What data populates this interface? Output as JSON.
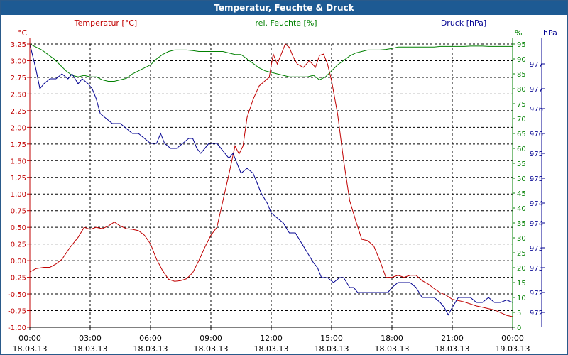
{
  "window": {
    "title": "Temperatur, Feuchte & Druck"
  },
  "colors": {
    "temperature": "#c00000",
    "humidity": "#008000",
    "pressure": "#000090",
    "grid": "#000000",
    "title_bar": "#1d5a93"
  },
  "chart_data": {
    "type": "line",
    "title": "Temperatur, Feuchte & Druck",
    "grid": true,
    "x_ticks": [
      {
        "h": 0,
        "time": "00:00",
        "date": "18.03.13"
      },
      {
        "h": 3,
        "time": "03:00",
        "date": "18.03.13"
      },
      {
        "h": 6,
        "time": "06:00",
        "date": "18.03.13"
      },
      {
        "h": 9,
        "time": "09:00",
        "date": "18.03.13"
      },
      {
        "h": 12,
        "time": "12:00",
        "date": "18.03.13"
      },
      {
        "h": 15,
        "time": "15:00",
        "date": "18.03.13"
      },
      {
        "h": 18,
        "time": "18:00",
        "date": "18.03.13"
      },
      {
        "h": 21,
        "time": "21:00",
        "date": "18.03.13"
      },
      {
        "h": 24,
        "time": "00:00",
        "date": "19.03.13"
      }
    ],
    "axes": {
      "temperature": {
        "label": "Temperatur [°C]",
        "unit": "°C",
        "ylim": [
          -1.0,
          3.25
        ],
        "ticks": [
          "-1,00",
          "-0,75",
          "-0,50",
          "-0,25",
          "0,00",
          "0,25",
          "0,50",
          "0,75",
          "1,00",
          "1,25",
          "1,50",
          "1,75",
          "2,00",
          "2,25",
          "2,50",
          "2,75",
          "3,00",
          "3,25"
        ]
      },
      "humidity": {
        "label": "rel. Feuchte [%]",
        "unit": "%",
        "ylim": [
          0,
          95
        ],
        "ticks": [
          "0",
          "5",
          "10",
          "15",
          "20",
          "25",
          "30",
          "35",
          "40",
          "45",
          "50",
          "55",
          "60",
          "65",
          "70",
          "75",
          "80",
          "85",
          "90",
          "95"
        ]
      },
      "pressure": {
        "label": "Druck [hPa]",
        "unit": "hPa",
        "ylim": [
          971.7,
          977.4
        ],
        "ticks": [
          {
            "v": 972.0,
            "label": "972"
          },
          {
            "v": 972.4,
            "label": "972"
          },
          {
            "v": 972.9,
            "label": "973"
          },
          {
            "v": 973.3,
            "label": "973"
          },
          {
            "v": 973.8,
            "label": "974"
          },
          {
            "v": 974.2,
            "label": "974"
          },
          {
            "v": 974.7,
            "label": "975"
          },
          {
            "v": 975.2,
            "label": "975"
          },
          {
            "v": 975.6,
            "label": "976"
          },
          {
            "v": 976.1,
            "label": "976"
          },
          {
            "v": 976.5,
            "label": "977"
          },
          {
            "v": 977.0,
            "label": "977"
          }
        ]
      }
    },
    "series": [
      {
        "name": "Temperatur [°C]",
        "axis": "temperature",
        "points": [
          [
            0,
            -0.17
          ],
          [
            0.3,
            -0.12
          ],
          [
            0.7,
            -0.1
          ],
          [
            1,
            -0.1
          ],
          [
            1.3,
            -0.05
          ],
          [
            1.6,
            0.02
          ],
          [
            2,
            0.2
          ],
          [
            2.4,
            0.35
          ],
          [
            2.7,
            0.5
          ],
          [
            3,
            0.47
          ],
          [
            3.3,
            0.5
          ],
          [
            3.6,
            0.48
          ],
          [
            3.9,
            0.52
          ],
          [
            4.2,
            0.58
          ],
          [
            4.5,
            0.52
          ],
          [
            4.8,
            0.48
          ],
          [
            5.1,
            0.47
          ],
          [
            5.4,
            0.45
          ],
          [
            5.7,
            0.38
          ],
          [
            6,
            0.25
          ],
          [
            6.3,
            0.02
          ],
          [
            6.6,
            -0.15
          ],
          [
            6.9,
            -0.28
          ],
          [
            7.2,
            -0.31
          ],
          [
            7.5,
            -0.3
          ],
          [
            7.8,
            -0.27
          ],
          [
            8.1,
            -0.18
          ],
          [
            8.4,
            0.0
          ],
          [
            8.7,
            0.2
          ],
          [
            9,
            0.38
          ],
          [
            9.3,
            0.5
          ],
          [
            9.6,
            0.9
          ],
          [
            9.9,
            1.3
          ],
          [
            10.2,
            1.72
          ],
          [
            10.4,
            1.6
          ],
          [
            10.6,
            1.72
          ],
          [
            10.8,
            2.15
          ],
          [
            11.1,
            2.42
          ],
          [
            11.4,
            2.62
          ],
          [
            11.7,
            2.7
          ],
          [
            11.9,
            2.75
          ],
          [
            12.1,
            3.1
          ],
          [
            12.3,
            2.95
          ],
          [
            12.5,
            3.1
          ],
          [
            12.7,
            3.25
          ],
          [
            12.9,
            3.2
          ],
          [
            13.1,
            3.05
          ],
          [
            13.3,
            2.95
          ],
          [
            13.6,
            2.9
          ],
          [
            13.9,
            3.0
          ],
          [
            14.2,
            2.9
          ],
          [
            14.4,
            3.08
          ],
          [
            14.6,
            3.1
          ],
          [
            14.8,
            2.95
          ],
          [
            15,
            2.7
          ],
          [
            15.3,
            2.2
          ],
          [
            15.6,
            1.5
          ],
          [
            15.9,
            0.9
          ],
          [
            16.2,
            0.6
          ],
          [
            16.5,
            0.32
          ],
          [
            16.8,
            0.3
          ],
          [
            17.1,
            0.22
          ],
          [
            17.4,
            0.0
          ],
          [
            17.7,
            -0.25
          ],
          [
            18,
            -0.25
          ],
          [
            18.3,
            -0.22
          ],
          [
            18.6,
            -0.25
          ],
          [
            18.9,
            -0.22
          ],
          [
            19.2,
            -0.22
          ],
          [
            19.5,
            -0.3
          ],
          [
            19.8,
            -0.35
          ],
          [
            20.1,
            -0.42
          ],
          [
            20.4,
            -0.48
          ],
          [
            20.7,
            -0.52
          ],
          [
            21,
            -0.58
          ],
          [
            21.3,
            -0.6
          ],
          [
            21.6,
            -0.62
          ],
          [
            21.9,
            -0.65
          ],
          [
            22.2,
            -0.68
          ],
          [
            22.5,
            -0.7
          ],
          [
            22.8,
            -0.72
          ],
          [
            23.1,
            -0.74
          ],
          [
            23.4,
            -0.78
          ],
          [
            23.7,
            -0.82
          ],
          [
            24,
            -0.84
          ]
        ]
      },
      {
        "name": "rel. Feuchte [%]",
        "axis": "humidity",
        "points": [
          [
            0,
            95
          ],
          [
            0.3,
            94
          ],
          [
            0.6,
            93
          ],
          [
            0.9,
            91.5
          ],
          [
            1.2,
            90
          ],
          [
            1.5,
            88
          ],
          [
            1.8,
            86
          ],
          [
            2.1,
            84.5
          ],
          [
            2.4,
            84
          ],
          [
            2.7,
            84.5
          ],
          [
            3,
            84
          ],
          [
            3.3,
            84
          ],
          [
            3.6,
            83
          ],
          [
            3.9,
            82.5
          ],
          [
            4.2,
            82.5
          ],
          [
            4.5,
            83
          ],
          [
            4.8,
            83.5
          ],
          [
            5.1,
            85
          ],
          [
            5.4,
            86
          ],
          [
            5.7,
            87
          ],
          [
            6,
            88
          ],
          [
            6.3,
            90
          ],
          [
            6.6,
            91.5
          ],
          [
            6.9,
            92.5
          ],
          [
            7.2,
            93
          ],
          [
            7.5,
            93
          ],
          [
            7.8,
            93
          ],
          [
            8.1,
            92.8
          ],
          [
            8.4,
            92.5
          ],
          [
            8.7,
            92.5
          ],
          [
            9,
            92.5
          ],
          [
            9.3,
            92.5
          ],
          [
            9.6,
            92.5
          ],
          [
            9.9,
            92
          ],
          [
            10.2,
            91.5
          ],
          [
            10.5,
            91.5
          ],
          [
            10.8,
            90
          ],
          [
            11.1,
            88.5
          ],
          [
            11.4,
            87
          ],
          [
            11.7,
            86
          ],
          [
            12,
            85.5
          ],
          [
            12.3,
            85
          ],
          [
            12.6,
            84.5
          ],
          [
            12.9,
            84
          ],
          [
            13.2,
            84
          ],
          [
            13.5,
            84
          ],
          [
            13.8,
            84
          ],
          [
            14.1,
            84.5
          ],
          [
            14.4,
            83
          ],
          [
            14.7,
            84
          ],
          [
            15,
            86
          ],
          [
            15.3,
            88
          ],
          [
            15.6,
            89.5
          ],
          [
            15.9,
            91
          ],
          [
            16.2,
            92
          ],
          [
            16.5,
            92.5
          ],
          [
            16.8,
            93
          ],
          [
            17.1,
            93
          ],
          [
            17.4,
            93
          ],
          [
            17.7,
            93.2
          ],
          [
            18,
            93.5
          ],
          [
            18.3,
            94
          ],
          [
            18.6,
            94
          ],
          [
            18.9,
            94
          ],
          [
            19.2,
            94
          ],
          [
            19.5,
            94
          ],
          [
            19.8,
            94
          ],
          [
            20.1,
            94
          ],
          [
            20.4,
            94.2
          ],
          [
            20.7,
            94.2
          ],
          [
            21,
            94.2
          ],
          [
            21.3,
            94.2
          ],
          [
            21.6,
            94.2
          ],
          [
            21.9,
            94.3
          ],
          [
            22.2,
            94.3
          ],
          [
            22.5,
            94.3
          ],
          [
            22.8,
            94.2
          ],
          [
            23.1,
            94.2
          ],
          [
            23.4,
            94.2
          ],
          [
            23.7,
            94.2
          ],
          [
            24,
            94.2
          ]
        ]
      },
      {
        "name": "Druck [hPa]",
        "axis": "pressure",
        "points": [
          [
            0,
            977.4
          ],
          [
            0.3,
            976.9
          ],
          [
            0.5,
            976.5
          ],
          [
            0.7,
            976.6
          ],
          [
            1,
            976.7
          ],
          [
            1.3,
            976.7
          ],
          [
            1.6,
            976.8
          ],
          [
            1.9,
            976.7
          ],
          [
            2.1,
            976.8
          ],
          [
            2.4,
            976.6
          ],
          [
            2.6,
            976.7
          ],
          [
            2.9,
            976.6
          ],
          [
            3.1,
            976.5
          ],
          [
            3.3,
            976.3
          ],
          [
            3.5,
            976.0
          ],
          [
            3.8,
            975.9
          ],
          [
            4.1,
            975.8
          ],
          [
            4.5,
            975.8
          ],
          [
            4.8,
            975.7
          ],
          [
            5.1,
            975.6
          ],
          [
            5.4,
            975.6
          ],
          [
            5.7,
            975.5
          ],
          [
            6,
            975.4
          ],
          [
            6.3,
            975.4
          ],
          [
            6.5,
            975.6
          ],
          [
            6.7,
            975.4
          ],
          [
            7,
            975.3
          ],
          [
            7.3,
            975.3
          ],
          [
            7.6,
            975.4
          ],
          [
            7.9,
            975.5
          ],
          [
            8.1,
            975.5
          ],
          [
            8.3,
            975.3
          ],
          [
            8.5,
            975.2
          ],
          [
            8.7,
            975.3
          ],
          [
            8.9,
            975.4
          ],
          [
            9.1,
            975.4
          ],
          [
            9.3,
            975.4
          ],
          [
            9.5,
            975.3
          ],
          [
            9.7,
            975.2
          ],
          [
            9.9,
            975.1
          ],
          [
            10.1,
            975.2
          ],
          [
            10.3,
            975.0
          ],
          [
            10.5,
            974.8
          ],
          [
            10.8,
            974.9
          ],
          [
            11.1,
            974.8
          ],
          [
            11.3,
            974.6
          ],
          [
            11.5,
            974.4
          ],
          [
            11.8,
            974.2
          ],
          [
            12,
            974.0
          ],
          [
            12.3,
            973.9
          ],
          [
            12.6,
            973.8
          ],
          [
            12.9,
            973.6
          ],
          [
            13.2,
            973.6
          ],
          [
            13.5,
            973.4
          ],
          [
            13.8,
            973.2
          ],
          [
            14.1,
            973.0
          ],
          [
            14.3,
            972.9
          ],
          [
            14.5,
            972.7
          ],
          [
            14.8,
            972.7
          ],
          [
            15.1,
            972.6
          ],
          [
            15.4,
            972.7
          ],
          [
            15.6,
            972.7
          ],
          [
            15.9,
            972.5
          ],
          [
            16.1,
            972.5
          ],
          [
            16.3,
            972.4
          ],
          [
            16.6,
            972.4
          ],
          [
            16.9,
            972.4
          ],
          [
            17.2,
            972.4
          ],
          [
            17.5,
            972.4
          ],
          [
            17.8,
            972.4
          ],
          [
            18,
            972.5
          ],
          [
            18.3,
            972.6
          ],
          [
            18.6,
            972.6
          ],
          [
            18.9,
            972.6
          ],
          [
            19.2,
            972.5
          ],
          [
            19.5,
            972.3
          ],
          [
            19.8,
            972.3
          ],
          [
            20.1,
            972.3
          ],
          [
            20.4,
            972.2
          ],
          [
            20.6,
            972.1
          ],
          [
            20.8,
            971.95
          ],
          [
            21,
            972.1
          ],
          [
            21.3,
            972.3
          ],
          [
            21.6,
            972.3
          ],
          [
            21.9,
            972.3
          ],
          [
            22.2,
            972.2
          ],
          [
            22.5,
            972.2
          ],
          [
            22.8,
            972.3
          ],
          [
            23.1,
            972.2
          ],
          [
            23.4,
            972.2
          ],
          [
            23.7,
            972.25
          ],
          [
            24,
            972.2
          ]
        ]
      }
    ]
  }
}
